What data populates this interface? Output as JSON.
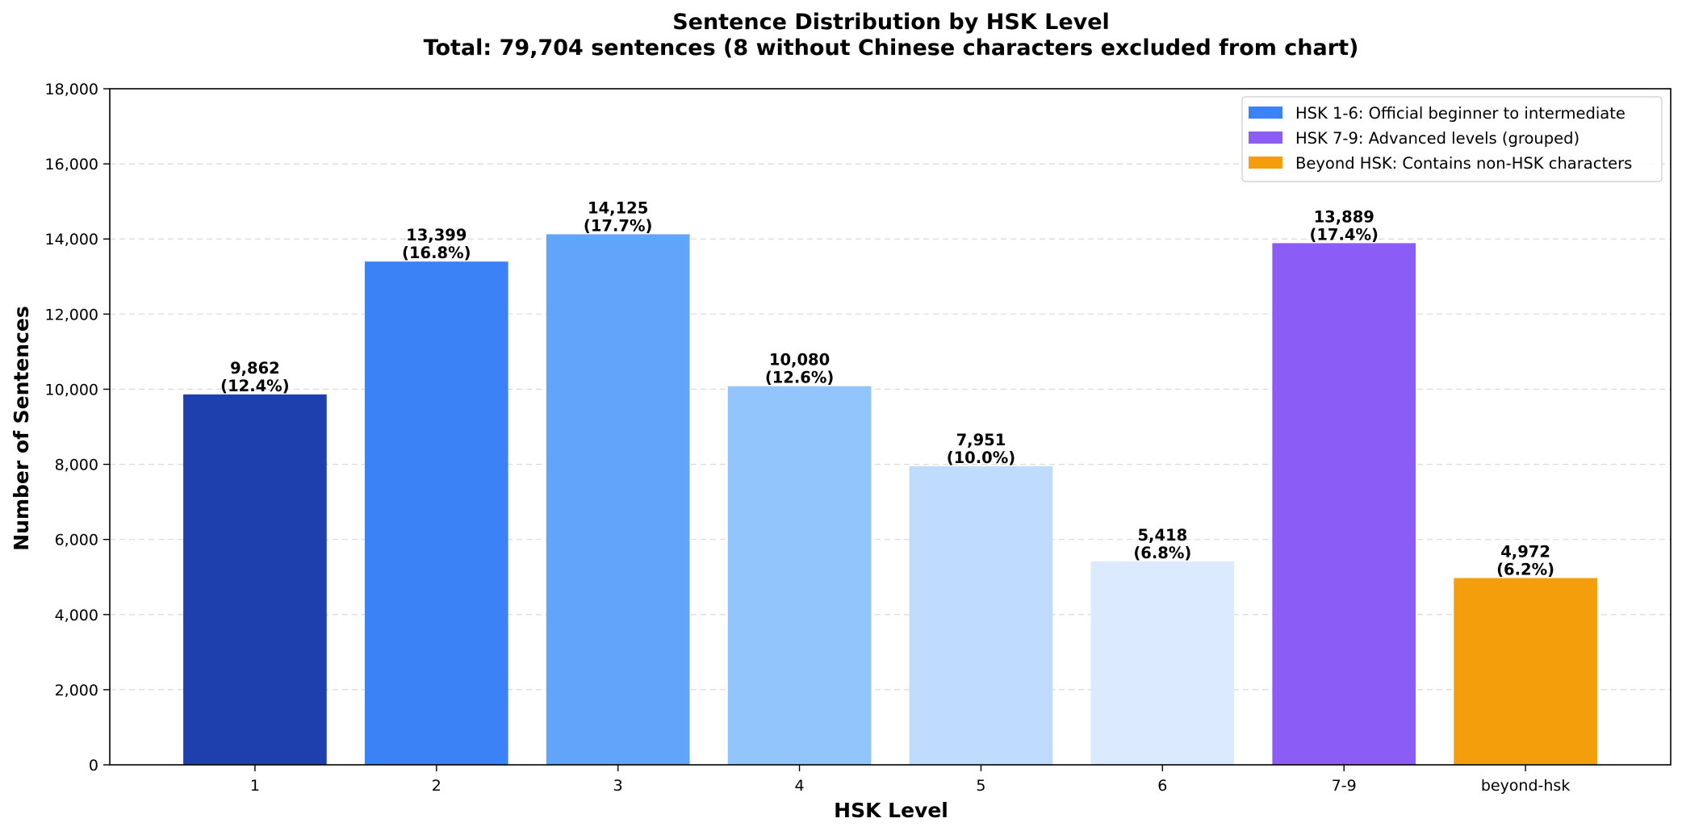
{
  "chart_data": {
    "type": "bar",
    "title": "Sentence Distribution by HSK Level",
    "subtitle": "Total: 79,704 sentences (8 without Chinese characters excluded from chart)",
    "xlabel": "HSK Level",
    "ylabel": "Number of Sentences",
    "ylim": [
      0,
      18000
    ],
    "yticks": [
      0,
      2000,
      4000,
      6000,
      8000,
      10000,
      12000,
      14000,
      16000,
      18000
    ],
    "ytick_labels": [
      "0",
      "2,000",
      "4,000",
      "6,000",
      "8,000",
      "10,000",
      "12,000",
      "14,000",
      "16,000",
      "18,000"
    ],
    "grid": "y, dashed",
    "legend_position": "top-right",
    "categories": [
      "1",
      "2",
      "3",
      "4",
      "5",
      "6",
      "7-9",
      "beyond-hsk"
    ],
    "values": [
      9862,
      13399,
      14125,
      10080,
      7951,
      5418,
      13889,
      4972
    ],
    "value_labels": [
      "9,862",
      "13,399",
      "14,125",
      "10,080",
      "7,951",
      "5,418",
      "13,889",
      "4,972"
    ],
    "percent_labels": [
      "(12.4%)",
      "(16.8%)",
      "(17.7%)",
      "(12.6%)",
      "(10.0%)",
      "(6.8%)",
      "(17.4%)",
      "(6.2%)"
    ],
    "bar_colors": [
      "#1e40af",
      "#3b82f6",
      "#60a5fa",
      "#93c5fd",
      "#bfdbfe",
      "#dbeafe",
      "#8b5cf6",
      "#f59e0b"
    ],
    "legend": [
      {
        "label": "HSK 1-6: Official beginner to intermediate",
        "color": "#3b82f6"
      },
      {
        "label": "HSK 7-9: Advanced levels (grouped)",
        "color": "#8b5cf6"
      },
      {
        "label": "Beyond HSK: Contains non-HSK characters",
        "color": "#f59e0b"
      }
    ]
  }
}
